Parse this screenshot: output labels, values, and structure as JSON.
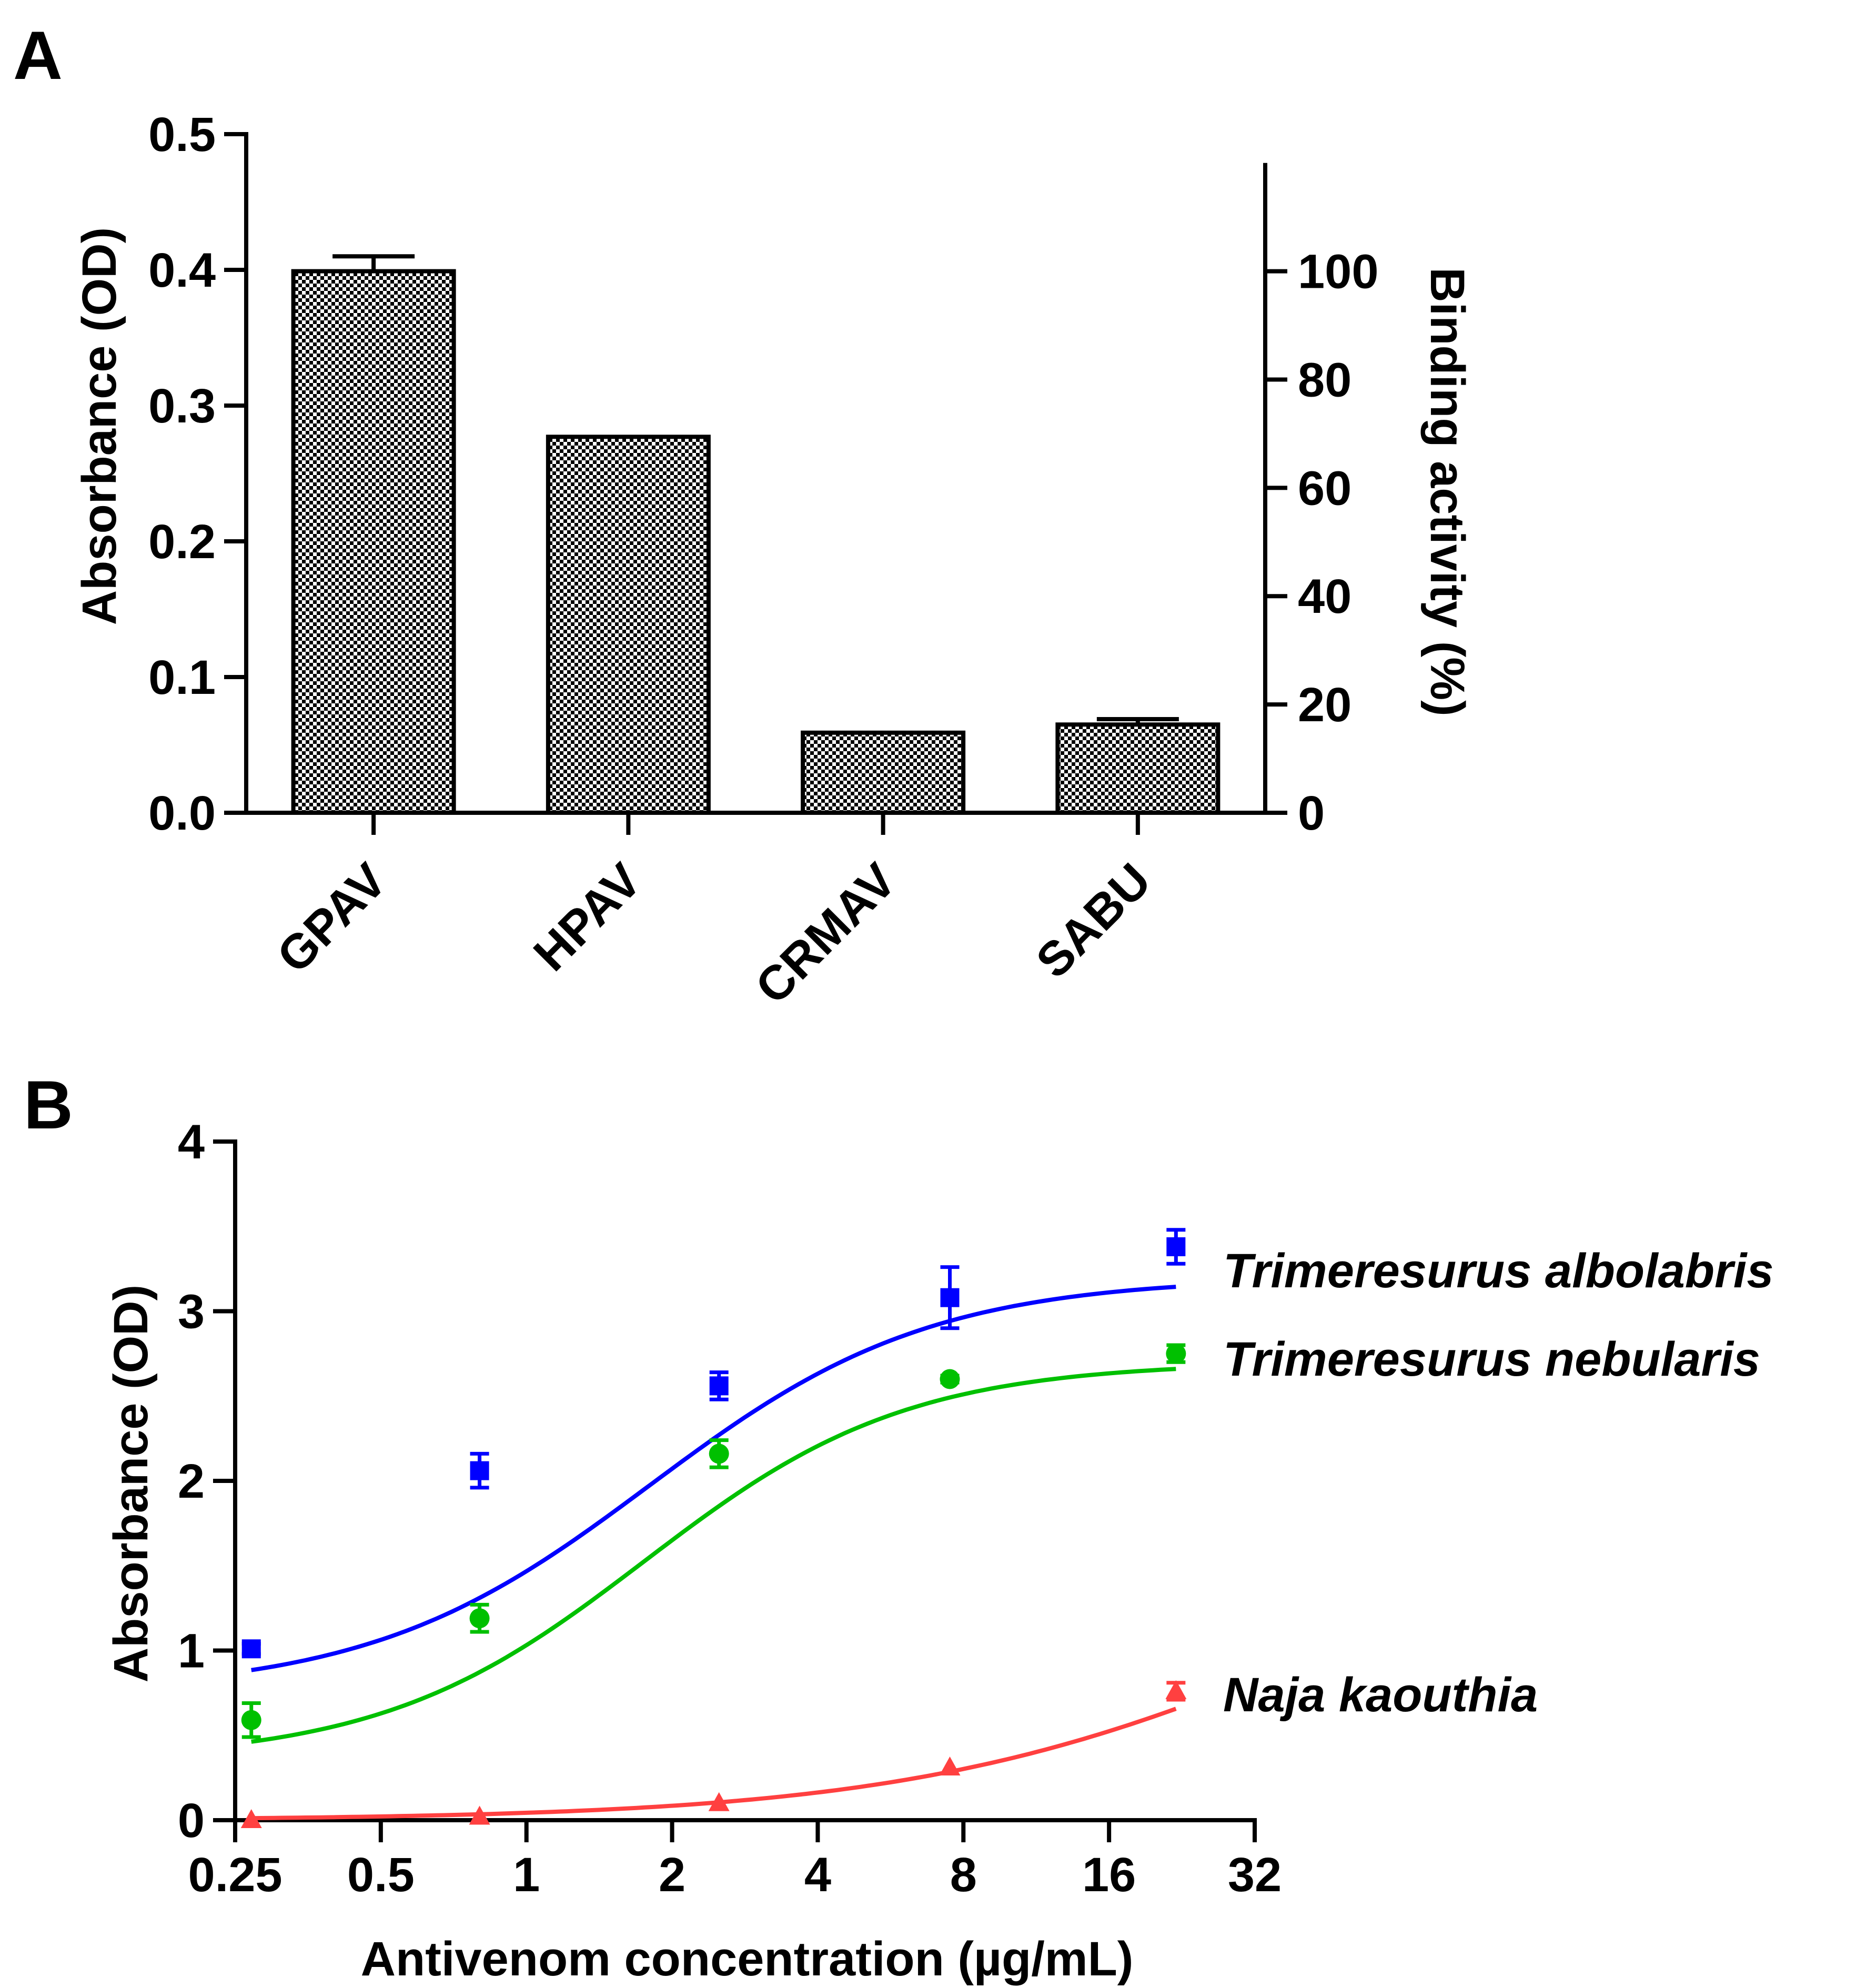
{
  "chart_data": [
    {
      "panel": "A",
      "type": "bar",
      "panel_label": "A",
      "categories": [
        "GPAV",
        "HPAV",
        "CRMAV",
        "SABU"
      ],
      "values": [
        0.399,
        0.277,
        0.059,
        0.065
      ],
      "errors": [
        0.011,
        0.0,
        0.0,
        0.004
      ],
      "ylabel": "Absorbance (OD)",
      "ylim": [
        0,
        0.5
      ],
      "yticks": [
        "0.0",
        "0.1",
        "0.2",
        "0.3",
        "0.4",
        "0.5"
      ],
      "ytick_values": [
        0,
        0.1,
        0.2,
        0.3,
        0.4,
        0.5
      ],
      "y2label": "Binding activity (%)",
      "y2ticks": [
        "0",
        "20",
        "40",
        "60",
        "80",
        "100"
      ],
      "y2tick_values": [
        0,
        20,
        40,
        60,
        80,
        100
      ],
      "y2_reference_value": 0.399,
      "bar_pattern": "checkered",
      "grid": false
    },
    {
      "panel": "B",
      "type": "line",
      "panel_label": "B",
      "xlabel": "Antivenom concentration (µg/mL)",
      "ylabel": "Absorbance (OD)",
      "xscale": "log2",
      "xlim": [
        0.25,
        32
      ],
      "xticks": [
        "0.25",
        "0.5",
        "1",
        "2",
        "4",
        "8",
        "16",
        "32"
      ],
      "xtick_values": [
        0.25,
        0.5,
        1,
        2,
        4,
        8,
        16,
        32
      ],
      "ylim": [
        0,
        4
      ],
      "yticks": [
        "0",
        "1",
        "2",
        "3",
        "4"
      ],
      "ytick_values": [
        0,
        1,
        2,
        3,
        4
      ],
      "grid": false,
      "series": [
        {
          "name": "Trimeresurus albolabris",
          "color": "#0000ff",
          "marker": "square",
          "x": [
            0.27,
            0.8,
            2.5,
            7.5,
            22
          ],
          "y": [
            1.01,
            2.06,
            2.56,
            3.08,
            3.38
          ],
          "err": [
            0.03,
            0.1,
            0.08,
            0.18,
            0.1
          ],
          "fit": {
            "bottom": 0.75,
            "top": 3.2,
            "ec50": 1.8,
            "hill": 1.5
          }
        },
        {
          "name": "Trimeresurus nebularis",
          "color": "#00c000",
          "marker": "circle",
          "x": [
            0.27,
            0.8,
            2.5,
            7.5,
            22
          ],
          "y": [
            0.59,
            1.19,
            2.16,
            2.6,
            2.75
          ],
          "err": [
            0.1,
            0.08,
            0.08,
            0.02,
            0.05
          ],
          "fit": {
            "bottom": 0.35,
            "top": 2.7,
            "ec50": 1.75,
            "hill": 1.6
          }
        },
        {
          "name": "Naja kaouthia",
          "color": "#ff4040",
          "marker": "triangle",
          "x": [
            0.27,
            0.8,
            2.5,
            7.5,
            22
          ],
          "y": [
            0.0,
            0.02,
            0.1,
            0.31,
            0.76
          ],
          "err": [
            0.0,
            0.0,
            0.0,
            0.0,
            0.05
          ],
          "fit": {
            "bottom": 0.0,
            "top": 2.0,
            "ec50": 45,
            "hill": 1.0
          }
        }
      ]
    }
  ]
}
